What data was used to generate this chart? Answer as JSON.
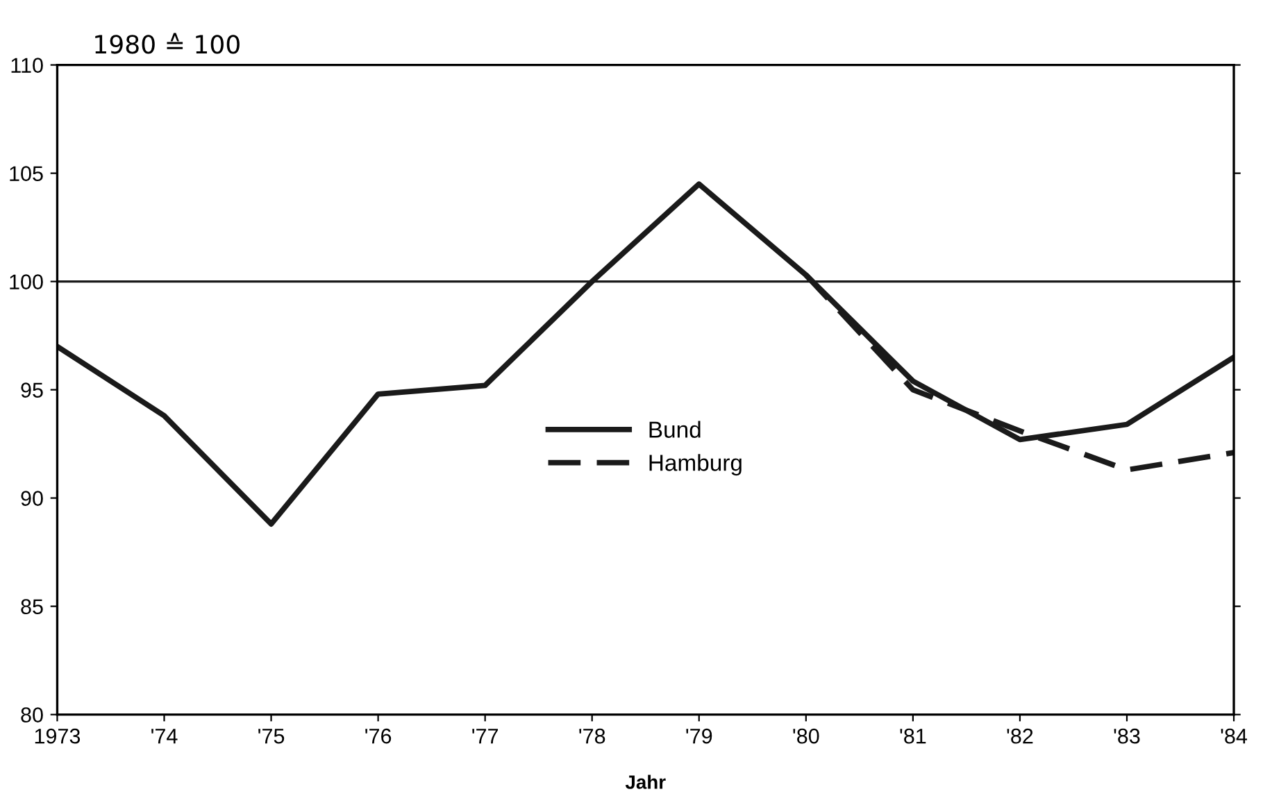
{
  "chart_data": {
    "type": "line",
    "title": "1980 ≙ 100",
    "xlabel": "Jahr",
    "categories": [
      "1973",
      "'74",
      "'75",
      "'76",
      "'77",
      "'78",
      "'79",
      "'80",
      "'81",
      "'82",
      "'83",
      "'84"
    ],
    "series": [
      {
        "name": "Bund",
        "color": "#1a1a1a",
        "line_style": "solid",
        "values": [
          97.0,
          93.8,
          88.8,
          94.8,
          95.2,
          100.0,
          104.5,
          100.3,
          95.4,
          92.7,
          93.4,
          96.5
        ]
      },
      {
        "name": "Hamburg",
        "color": "#1a1a1a",
        "line_style": "dashed",
        "values": [
          null,
          null,
          null,
          null,
          null,
          null,
          null,
          100.3,
          95.0,
          93.1,
          91.3,
          92.1
        ]
      }
    ],
    "ylim": [
      80,
      110
    ],
    "yticks": [
      80,
      85,
      90,
      95,
      100,
      105,
      110
    ],
    "ref_lines": [
      {
        "axis": "y",
        "value": 100,
        "color": "#1a1a1a"
      }
    ],
    "grid": false,
    "legend": "center",
    "marker": "none"
  }
}
